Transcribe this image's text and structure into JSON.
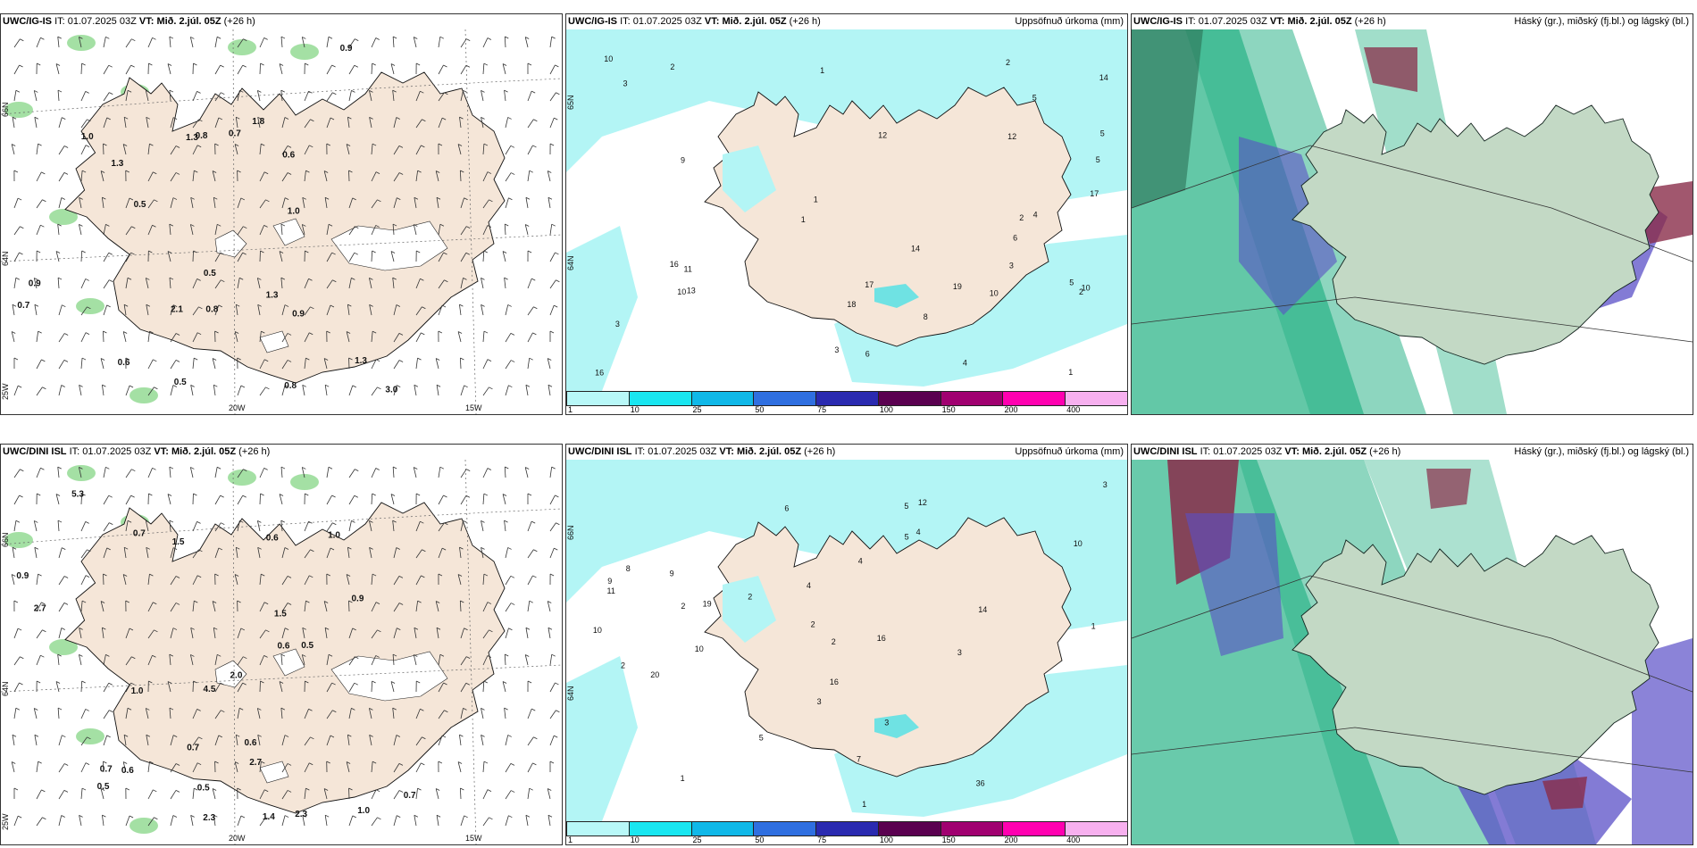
{
  "colors": {
    "land": "#f5e6d8",
    "precip_light": "#b3f5f5",
    "precip_mid": "#36e0e8",
    "cloud_high": "#2fb58a",
    "cloud_mid": "#5a4fc7",
    "cloud_low": "#8a2d4a"
  },
  "panels": [
    {
      "id": "ig-wind",
      "title_model": "UWC/IG-IS",
      "title_it_prefix": "IT:",
      "title_it": "01.07.2025 03Z",
      "title_vt_prefix": "VT:",
      "title_vt": "Mið. 2.júl. 05Z",
      "title_lead": "(+26 h)",
      "right_title": "",
      "lat_labels": [
        "66N",
        "64N",
        "25W"
      ],
      "lon_labels": [
        "20W",
        "15W"
      ],
      "gust_values": [
        "1.3",
        "0.6",
        "0.9",
        "1.0",
        "1.8",
        "0.5",
        "0.9",
        "0.8",
        "0.7",
        "0.7",
        "2.1",
        "1.3",
        "0.9",
        "0.8",
        "0.5",
        "0.8",
        "1.0",
        "0.6",
        "0.5",
        "1.3",
        "1.3",
        "3.0"
      ]
    },
    {
      "id": "ig-precip",
      "title_model": "UWC/IG-IS",
      "title_it_prefix": "IT:",
      "title_it": "01.07.2025 03Z",
      "title_vt_prefix": "VT:",
      "title_vt": "Mið. 2.júl. 05Z",
      "title_lead": "(+26 h)",
      "right_title": "Uppsöfnuð úrkoma (mm)",
      "lat_labels": [
        "65N",
        "64N"
      ],
      "precip_values": [
        "2",
        "1",
        "3",
        "3",
        "2",
        "5",
        "4",
        "11",
        "13",
        "14",
        "10",
        "10",
        "3",
        "9",
        "6",
        "5",
        "12",
        "16",
        "17",
        "14",
        "17",
        "18",
        "19",
        "16",
        "5",
        "10",
        "12",
        "5",
        "6",
        "2",
        "1",
        "10",
        "8",
        "4",
        "3",
        "1",
        "2",
        "1"
      ],
      "colorbar": {
        "ticks": [
          "1",
          "10",
          "25",
          "50",
          "75",
          "100",
          "150",
          "200",
          "400"
        ],
        "colors": [
          "#b8f8f8",
          "#19e6f0",
          "#10b8e8",
          "#2f6fe0",
          "#2a2ab0",
          "#5a0050",
          "#a00070",
          "#ff00b0",
          "#f7b0ef"
        ]
      }
    },
    {
      "id": "ig-cloud",
      "title_model": "UWC/IG-IS",
      "title_it_prefix": "IT:",
      "title_it": "01.07.2025 03Z",
      "title_vt_prefix": "VT:",
      "title_vt": "Mið. 2.júl. 05Z",
      "title_lead": "(+26 h)",
      "right_title": "Háský (gr.), miðský (fj.bl.) og lágský (bl.)"
    },
    {
      "id": "dini-wind",
      "title_model": "UWC/DINI ISL",
      "title_it_prefix": "IT:",
      "title_it": "01.07.2025 03Z",
      "title_vt_prefix": "VT:",
      "title_vt": "Mið. 2.júl. 05Z",
      "title_lead": "(+26 h)",
      "right_title": "",
      "lat_labels": [
        "66N",
        "64N",
        "25W"
      ],
      "lon_labels": [
        "20W",
        "15W"
      ],
      "gust_values": [
        "1.4",
        "2.0",
        "0.5",
        "0.6",
        "1.0",
        "2.7",
        "0.9",
        "0.6",
        "0.6",
        "0.7",
        "1.5",
        "0.5",
        "0.7",
        "0.5",
        "1.0",
        "0.9",
        "0.7",
        "2.7",
        "0.7",
        "0.6",
        "4.5",
        "5.3",
        "1.0",
        "2.3",
        "2.3",
        "1.5"
      ]
    },
    {
      "id": "dini-precip",
      "title_model": "UWC/DINI ISL",
      "title_it_prefix": "IT:",
      "title_it": "01.07.2025 03Z",
      "title_vt_prefix": "VT:",
      "title_vt": "Mið. 2.júl. 05Z",
      "title_lead": "(+26 h)",
      "right_title": "Uppsöfnuð úrkoma (mm)",
      "lat_labels": [
        "66N",
        "64N"
      ],
      "precip_values": [
        "5",
        "2",
        "3",
        "1",
        "14",
        "10",
        "12",
        "10",
        "9",
        "3",
        "4",
        "5",
        "2",
        "3",
        "36",
        "16",
        "19",
        "20",
        "11",
        "10",
        "9",
        "16",
        "4",
        "6",
        "2",
        "1",
        "7",
        "8",
        "5",
        "2",
        "3",
        "4",
        "1",
        "2"
      ],
      "colorbar": {
        "ticks": [
          "1",
          "10",
          "25",
          "50",
          "75",
          "100",
          "150",
          "200",
          "400"
        ],
        "colors": [
          "#b8f8f8",
          "#19e6f0",
          "#10b8e8",
          "#2f6fe0",
          "#2a2ab0",
          "#5a0050",
          "#a00070",
          "#ff00b0",
          "#f7b0ef"
        ]
      }
    },
    {
      "id": "dini-cloud",
      "title_model": "UWC/DINI ISL",
      "title_it_prefix": "IT:",
      "title_it": "01.07.2025 03Z",
      "title_vt_prefix": "VT:",
      "title_vt": "Mið. 2.júl. 05Z",
      "title_lead": "(+26 h)",
      "right_title": "Háský (gr.), miðský (fj.bl.) og lágský (bl.)"
    }
  ]
}
